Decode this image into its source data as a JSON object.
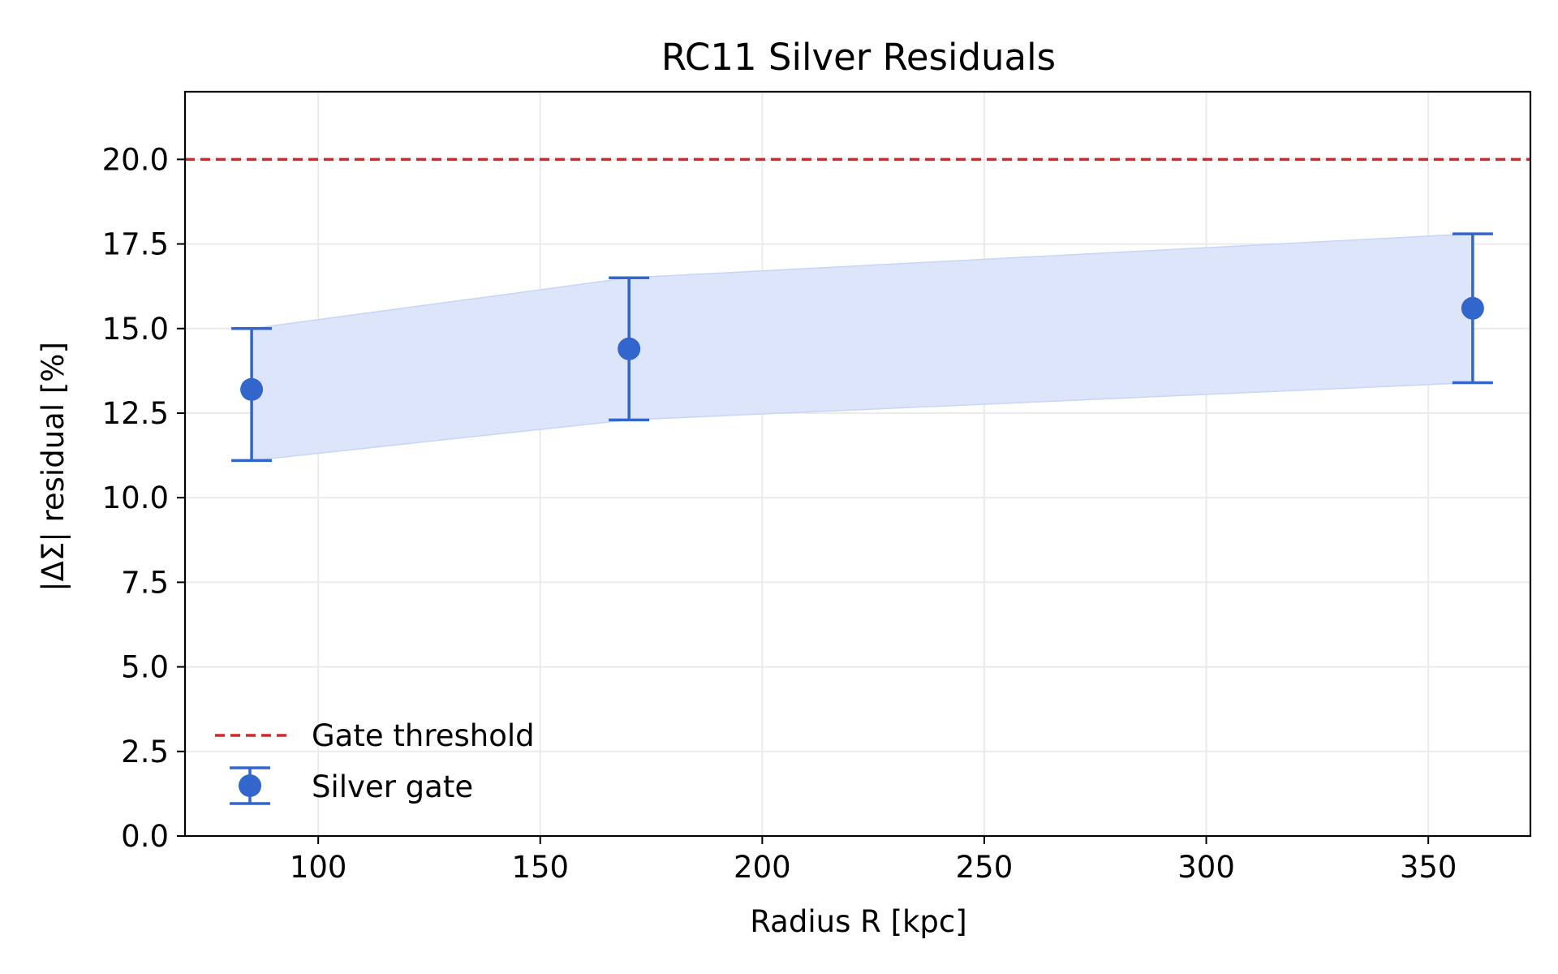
{
  "chart_data": {
    "type": "scatter",
    "title": "RC11 Silver Residuals",
    "xlabel": "Radius R [kpc]",
    "ylabel": "|ΔΣ| residual [%]",
    "xlim": [
      70,
      373
    ],
    "ylim": [
      0,
      22
    ],
    "xticks": [
      100,
      150,
      200,
      250,
      300,
      350
    ],
    "xtick_labels": [
      "100",
      "150",
      "200",
      "250",
      "300",
      "350"
    ],
    "yticks": [
      0,
      2.5,
      5,
      7.5,
      10,
      12.5,
      15,
      17.5,
      20
    ],
    "ytick_labels": [
      "0.0",
      "2.5",
      "5.0",
      "7.5",
      "10.0",
      "12.5",
      "15.0",
      "17.5",
      "20.0"
    ],
    "grid": true,
    "legend_position": "lower-left",
    "series": [
      {
        "name": "Silver gate",
        "kind": "errorbar",
        "color": "#3366cc",
        "x": [
          85,
          170,
          360
        ],
        "y": [
          13.2,
          14.4,
          15.6
        ],
        "y_low": [
          11.1,
          12.3,
          13.4
        ],
        "y_high": [
          15.0,
          16.5,
          17.8
        ]
      }
    ],
    "band": {
      "color": "#dce5f9",
      "x": [
        85,
        170,
        360
      ],
      "lower": [
        11.1,
        12.3,
        13.4
      ],
      "upper": [
        15.0,
        16.5,
        17.8
      ]
    },
    "reference_line": {
      "name": "Gate threshold",
      "y": 20.0,
      "color": "#d62728",
      "style": "dashed"
    }
  }
}
